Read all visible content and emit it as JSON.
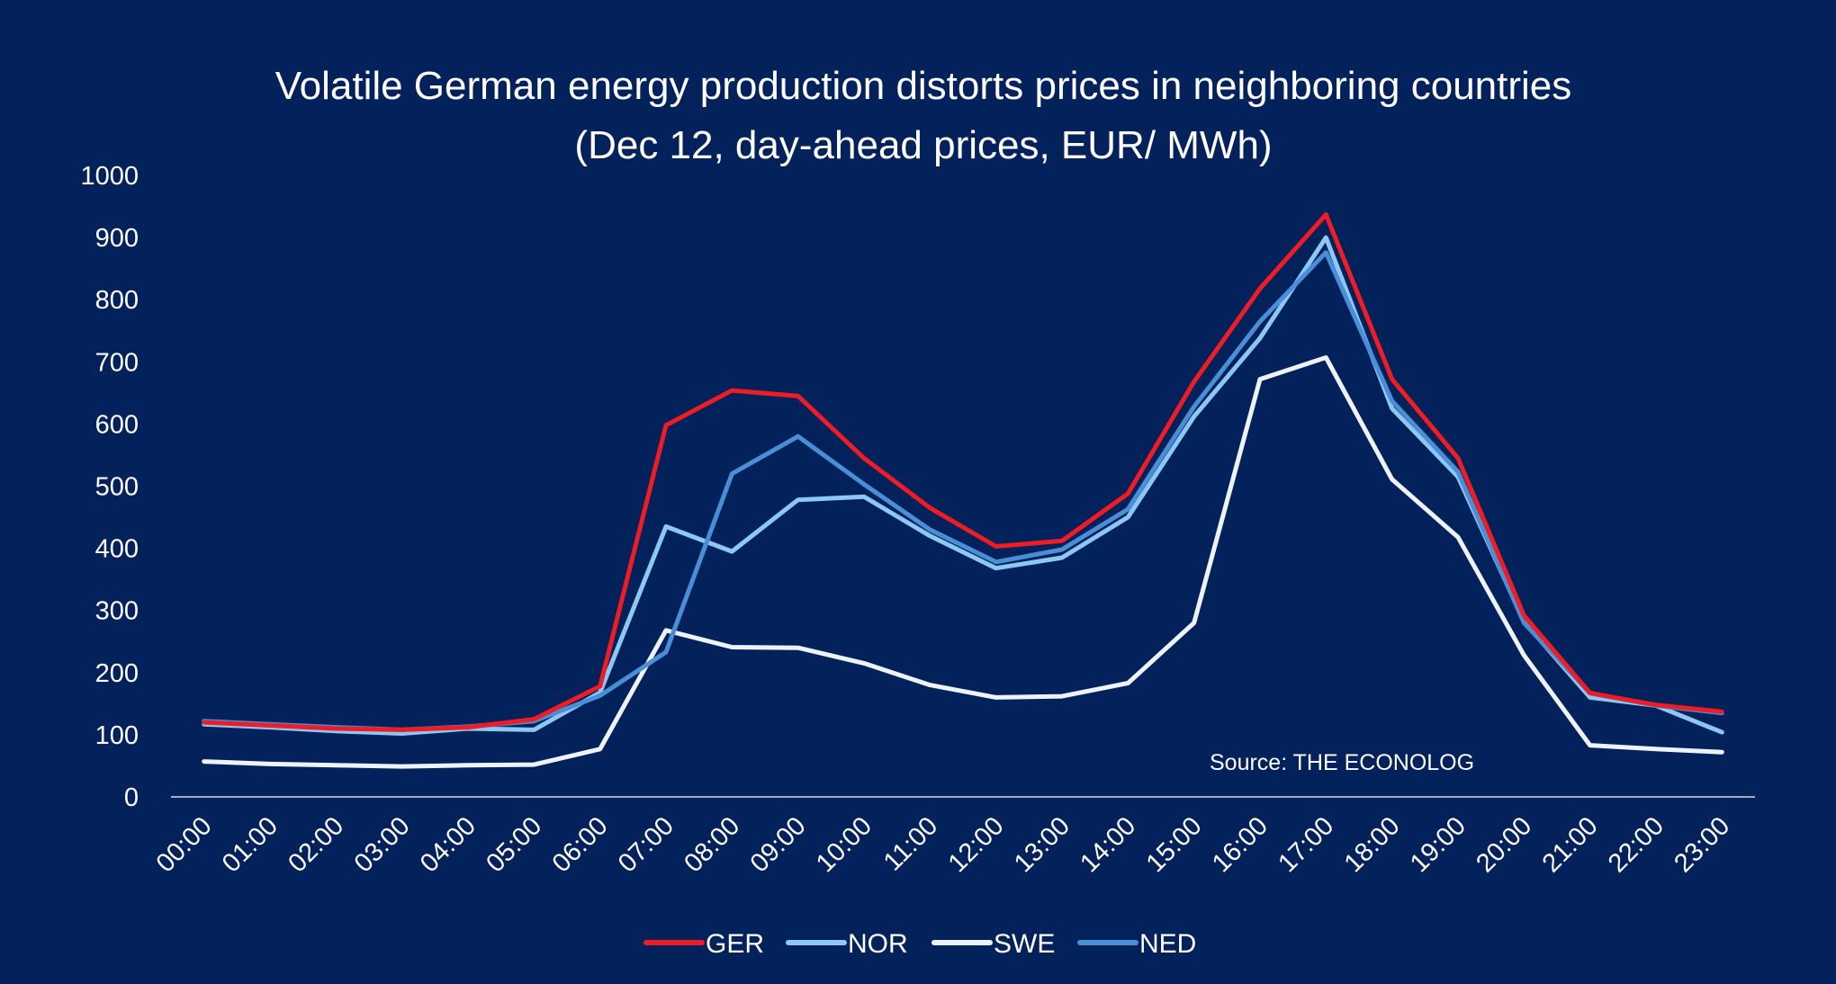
{
  "chart_data": {
    "type": "line",
    "title": "Volatile German energy production distorts prices in neighboring countries",
    "subtitle": "(Dec 12, day-ahead prices, EUR/ MWh)",
    "source": "Source: THE ECONOLOG",
    "ylim": [
      0,
      1000
    ],
    "yticks": [
      "0",
      "100",
      "200",
      "300",
      "400",
      "500",
      "600",
      "700",
      "800",
      "900",
      "1000"
    ],
    "x": [
      "00:00",
      "01:00",
      "02:00",
      "03:00",
      "04:00",
      "05:00",
      "06:00",
      "07:00",
      "08:00",
      "09:00",
      "10:00",
      "11:00",
      "12:00",
      "13:00",
      "14:00",
      "15:00",
      "16:00",
      "17:00",
      "18:00",
      "19:00",
      "20:00",
      "21:00",
      "22:00",
      "23:00"
    ],
    "grid": false,
    "legend_position": "bottom",
    "series": [
      {
        "name": "GER",
        "color": "#ee1c25",
        "values": [
          120,
          115,
          110,
          108,
          112,
          125,
          178,
          598,
          654,
          645,
          545,
          465,
          403,
          412,
          488,
          668,
          818,
          937,
          672,
          545,
          292,
          167,
          148,
          137
        ]
      },
      {
        "name": "NOR",
        "color": "#8dc8f4",
        "values": [
          117,
          112,
          106,
          102,
          110,
          108,
          168,
          435,
          395,
          478,
          483,
          420,
          368,
          385,
          450,
          612,
          738,
          900,
          625,
          515,
          282,
          160,
          147,
          104
        ]
      },
      {
        "name": "SWE",
        "color": "#eef3fb",
        "values": [
          57,
          53,
          51,
          49,
          51,
          52,
          77,
          268,
          241,
          240,
          215,
          180,
          160,
          162,
          183,
          280,
          672,
          707,
          511,
          418,
          228,
          83,
          77,
          72
        ]
      },
      {
        "name": "NED",
        "color": "#4a8fd6",
        "values": [
          122,
          117,
          112,
          108,
          113,
          122,
          163,
          233,
          520,
          580,
          503,
          430,
          378,
          398,
          463,
          628,
          765,
          876,
          637,
          523,
          280,
          167,
          147,
          135
        ]
      }
    ]
  }
}
